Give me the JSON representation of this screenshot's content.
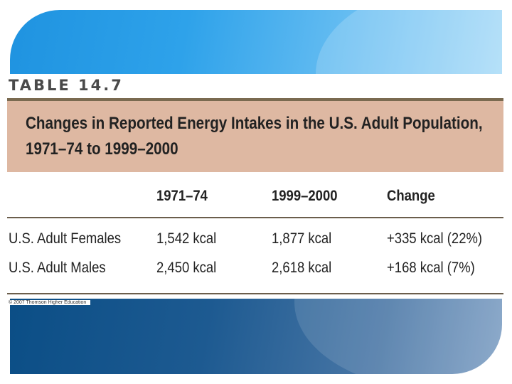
{
  "table": {
    "label": "TABLE 14.7",
    "title_line1": "Changes in Reported Energy Intakes in the U.S. Adult Population,",
    "title_line2": "1971–74 to 1999–2000",
    "headers": [
      "",
      "1971–74",
      "1999–2000",
      "Change"
    ],
    "rows": [
      [
        "U.S. Adult Females",
        "1,542 kcal",
        "1,877 kcal",
        "+335 kcal (22%)"
      ],
      [
        "U.S. Adult Males",
        "2,450 kcal",
        "2,618 kcal",
        "+168 kcal (7%)"
      ]
    ]
  },
  "copyright": "© 2007 Thomson Higher Education",
  "colors": {
    "top_banner": "#2ea2ea",
    "bottom_banner": "#1d5a91",
    "title_box": "#deb8a2"
  }
}
